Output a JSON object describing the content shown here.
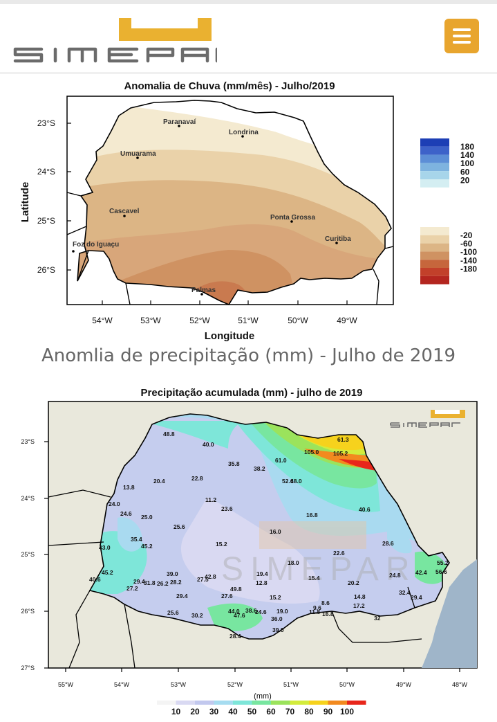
{
  "header": {
    "logo_text": "SIMEPAR",
    "menu_label": "menu"
  },
  "figure1": {
    "caption": "Anomlia de precipitação (mm) - Julho de 2019",
    "chart_data": {
      "type": "heatmap",
      "title": "Anomalia de Chuva (mm/mês) - Julho/2019",
      "xlabel": "Longitude",
      "ylabel": "Latitude",
      "x_ticks": [
        "54°W",
        "53°W",
        "52°W",
        "51°W",
        "50°W",
        "49°W"
      ],
      "y_ticks": [
        "23°S",
        "24°S",
        "25°S",
        "26°S"
      ],
      "legend": {
        "positive_labels": [
          "180",
          "140",
          "100",
          "60",
          "20"
        ],
        "positive_colors": [
          "#1d3fb5",
          "#3d62c9",
          "#5c8ed6",
          "#7eb3df",
          "#a7d5ea",
          "#d4eef2"
        ],
        "negative_labels": [
          "-20",
          "-60",
          "-100",
          "-140",
          "-180"
        ],
        "negative_colors": [
          "#f4ead0",
          "#ead2a9",
          "#dcb585",
          "#cf9262",
          "#c6663c",
          "#c2402a",
          "#b4261f"
        ]
      },
      "cities": [
        {
          "name": "Paranavaí"
        },
        {
          "name": "Londrina"
        },
        {
          "name": "Umuarama"
        },
        {
          "name": "Cascavel"
        },
        {
          "name": "Ponta Grossa"
        },
        {
          "name": "Curitiba"
        },
        {
          "name": "Foz do Iguaçu"
        },
        {
          "name": "Palmas"
        }
      ]
    }
  },
  "figure2": {
    "chart_data": {
      "type": "heatmap",
      "title": "Precipitação acumulada (mm) - julho de 2019",
      "colorbar_label": "(mm)",
      "x_ticks": [
        "55°W",
        "54°W",
        "53°W",
        "52°W",
        "51°W",
        "50°W",
        "49°W",
        "48°W"
      ],
      "y_ticks": [
        "23°S",
        "24°S",
        "25°S",
        "26°S",
        "27°S"
      ],
      "colorbar": {
        "labels": [
          "10",
          "20",
          "30",
          "40",
          "50",
          "60",
          "70",
          "80",
          "90",
          "100"
        ],
        "colors": [
          "#f4f4f4",
          "#d9d9f2",
          "#c2c8ee",
          "#a6dcf0",
          "#7ee6d9",
          "#78e6a0",
          "#9be35c",
          "#d3ec3c",
          "#f6d21d",
          "#f28a1f",
          "#e8261b"
        ]
      },
      "station_values": [
        "48.8",
        "40.0",
        "61.3",
        "105.0",
        "105.2",
        "61.0",
        "35.8",
        "38.2",
        "52.6",
        "48.0",
        "20.4",
        "22.8",
        "13.8",
        "24.0",
        "11.2",
        "23.6",
        "24.6",
        "25.0",
        "16.8",
        "40.6",
        "25.6",
        "16.0",
        "35.4",
        "45.2",
        "15.2",
        "43.0",
        "22.6",
        "28.6",
        "18.0",
        "45.2",
        "39.0",
        "19.4",
        "29.4",
        "31.8",
        "26.2",
        "28.2",
        "27.5",
        "42.8",
        "15.4",
        "24.8",
        "40.6",
        "27.2",
        "12.8",
        "20.2",
        "49.8",
        "55.2",
        "56.6",
        "42.4",
        "29.4",
        "27.6",
        "15.2",
        "14.8",
        "32.4",
        "29.4",
        "25.6",
        "30.2",
        "44.0",
        "47.6",
        "38.6",
        "24.6",
        "19.0",
        "9.6",
        "8.6",
        "17.2",
        "36.0",
        "11.8",
        "16.8",
        "32",
        "28.4",
        "39.0"
      ],
      "watermark": "SIMEPAR"
    }
  }
}
